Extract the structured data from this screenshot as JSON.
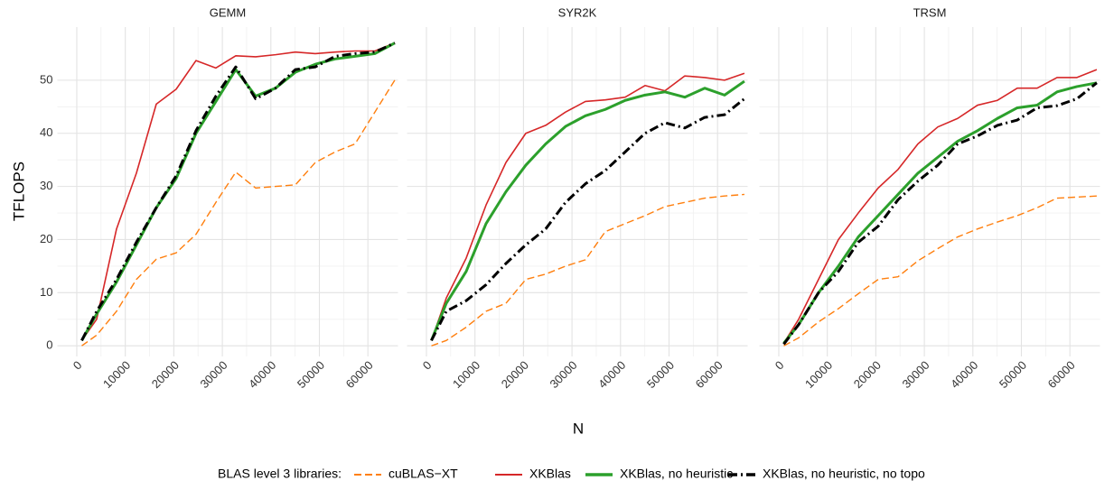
{
  "xlabel": "N",
  "ylabel": "TFLOPS",
  "legend": {
    "title": "BLAS level 3 libraries:",
    "position": "bottom"
  },
  "chart_data": [
    {
      "type": "line",
      "title": "GEMM",
      "x": [
        1024,
        4096,
        8192,
        12288,
        16384,
        20480,
        24576,
        28672,
        32768,
        36864,
        40960,
        45056,
        49152,
        53248,
        57344,
        61440,
        65536
      ],
      "xlim": [
        -4000,
        66200
      ],
      "xticks": [
        0,
        10000,
        20000,
        30000,
        40000,
        50000,
        60000
      ],
      "ylim": [
        -2,
        60
      ],
      "yticks": [
        0,
        10,
        20,
        30,
        40,
        50
      ],
      "grid": true,
      "series": [
        {
          "name": "cuBLAS−XT",
          "color": "#ff7f0e",
          "linetype": "dashed",
          "values": [
            0,
            2,
            6.5,
            12.5,
            16.3,
            17.5,
            21,
            27,
            32.7,
            29.7,
            30,
            30.3,
            34.5,
            36.5,
            38,
            44,
            50
          ]
        },
        {
          "name": "XKBlas",
          "color": "#d62728",
          "linetype": "solid",
          "values": [
            1,
            5,
            22,
            32.5,
            45.5,
            48.3,
            53.7,
            52.3,
            54.6,
            54.4,
            54.8,
            55.3,
            55,
            55.3,
            55.5,
            55.5,
            57
          ]
        },
        {
          "name": "XKBlas, no heuristic",
          "color": "#2ca02c",
          "linetype": "solid",
          "values": [
            1,
            6,
            12,
            19,
            26,
            31.5,
            40,
            46,
            52,
            47,
            48.5,
            51.5,
            53,
            54,
            54.5,
            55,
            57
          ]
        },
        {
          "name": "XKBlas, no heuristic, no topo",
          "color": "#000000",
          "linetype": "dotdash",
          "values": [
            1,
            6.5,
            12.5,
            19.5,
            26,
            32,
            40.5,
            47,
            52.5,
            46.5,
            48.5,
            52,
            52.5,
            54.5,
            55,
            55.3,
            57
          ]
        }
      ]
    },
    {
      "type": "line",
      "title": "SYR2K",
      "x": [
        1024,
        4096,
        8192,
        12288,
        16384,
        20480,
        24576,
        28672,
        32768,
        36864,
        40960,
        45056,
        49152,
        53248,
        57344,
        61440,
        65536
      ],
      "xlim": [
        -4000,
        66200
      ],
      "xticks": [
        0,
        10000,
        20000,
        30000,
        40000,
        50000,
        60000
      ],
      "ylim": [
        -2,
        60
      ],
      "yticks": [
        0,
        10,
        20,
        30,
        40,
        50
      ],
      "grid": true,
      "series": [
        {
          "name": "cuBLAS−XT",
          "color": "#ff7f0e",
          "linetype": "dashed",
          "values": [
            0,
            1,
            3.5,
            6.5,
            8,
            12.5,
            13.5,
            15,
            16.2,
            21.5,
            23,
            24.5,
            26.2,
            27,
            27.8,
            28.2,
            28.5
          ]
        },
        {
          "name": "XKBlas",
          "color": "#d62728",
          "linetype": "solid",
          "values": [
            1,
            9,
            16.5,
            26.5,
            34.5,
            40,
            41.5,
            44,
            46,
            46.3,
            46.8,
            49,
            48,
            50.8,
            50.5,
            50,
            51.3
          ]
        },
        {
          "name": "XKBlas, no heuristic",
          "color": "#2ca02c",
          "linetype": "solid",
          "values": [
            1,
            8,
            14,
            23,
            29,
            34,
            38,
            41.3,
            43.3,
            44.5,
            46.2,
            47.2,
            47.8,
            46.8,
            48.5,
            47.2,
            49.8
          ]
        },
        {
          "name": "XKBlas, no heuristic, no topo",
          "color": "#000000",
          "linetype": "dotdash",
          "values": [
            1,
            6.5,
            8.5,
            11.5,
            15.5,
            19,
            22,
            27,
            30.5,
            33,
            36.5,
            40,
            42,
            41,
            43,
            43.5,
            46.5
          ]
        }
      ]
    },
    {
      "type": "line",
      "title": "TRSM",
      "x": [
        1024,
        4096,
        8192,
        12288,
        16384,
        20480,
        24576,
        28672,
        32768,
        36864,
        40960,
        45056,
        49152,
        53248,
        57344,
        61440,
        65536
      ],
      "xlim": [
        -4000,
        66200
      ],
      "xticks": [
        0,
        10000,
        20000,
        30000,
        40000,
        50000,
        60000
      ],
      "ylim": [
        -2,
        60
      ],
      "yticks": [
        0,
        10,
        20,
        30,
        40,
        50
      ],
      "grid": true,
      "series": [
        {
          "name": "cuBLAS−XT",
          "color": "#ff7f0e",
          "linetype": "dashed",
          "values": [
            0,
            1.5,
            4.5,
            7,
            9.8,
            12.5,
            13,
            16,
            18.3,
            20.5,
            22,
            23.3,
            24.5,
            26,
            27.8,
            28,
            28.2
          ]
        },
        {
          "name": "XKBlas",
          "color": "#d62728",
          "linetype": "solid",
          "values": [
            0.5,
            5,
            12.5,
            20,
            25,
            29.7,
            33.2,
            38,
            41.2,
            42.8,
            45.3,
            46.2,
            48.5,
            48.5,
            50.5,
            50.5,
            52
          ]
        },
        {
          "name": "XKBlas, no heuristic",
          "color": "#2ca02c",
          "linetype": "solid",
          "values": [
            0.5,
            4,
            10,
            15,
            20.5,
            24.5,
            28.5,
            32.5,
            35.5,
            38.5,
            40.5,
            42.8,
            44.8,
            45.3,
            47.8,
            48.8,
            49.5
          ]
        },
        {
          "name": "XKBlas, no heuristic, no topo",
          "color": "#000000",
          "linetype": "dotdash",
          "values": [
            0.3,
            4,
            10,
            14,
            19.5,
            22.5,
            27.5,
            31,
            34,
            38,
            39.5,
            41.5,
            42.5,
            44.8,
            45.2,
            46.5,
            49.5
          ]
        }
      ]
    }
  ]
}
